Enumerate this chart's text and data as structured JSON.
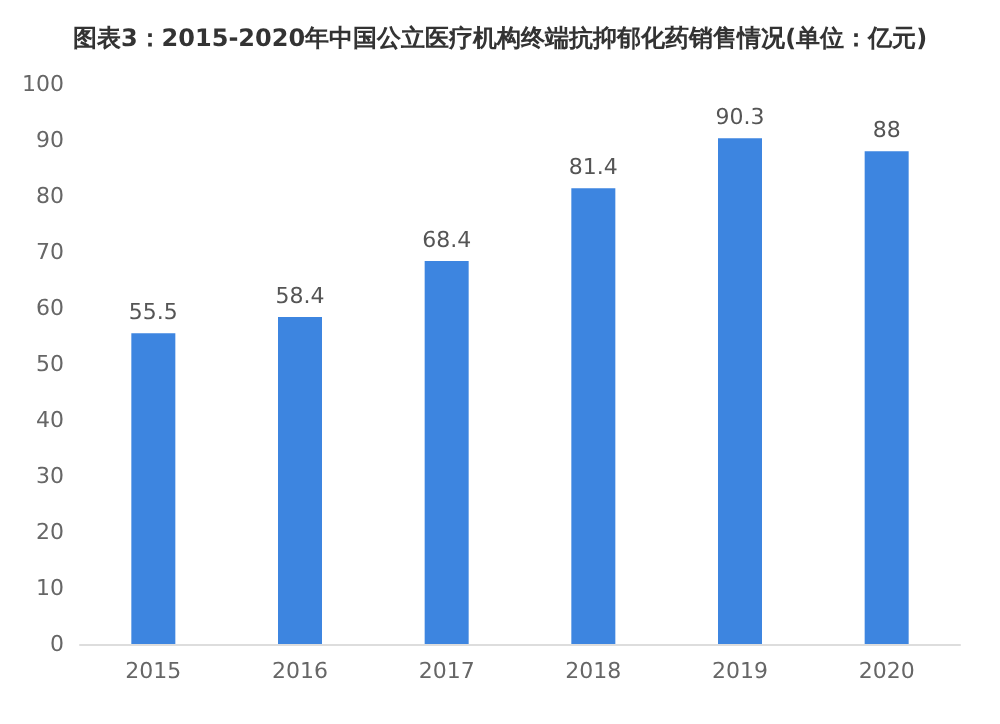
{
  "chart_data": {
    "type": "bar",
    "title": "图表3：2015-2020年中国公立医疗机构终端抗抑郁化药销售情况(单位：亿元)",
    "categories": [
      "2015",
      "2016",
      "2017",
      "2018",
      "2019",
      "2020"
    ],
    "values": [
      55.5,
      58.4,
      68.4,
      81.4,
      90.3,
      88
    ],
    "color": "#3d85e0",
    "ylim": [
      0,
      100
    ],
    "yticks": [
      0,
      10,
      20,
      30,
      40,
      50,
      60,
      70,
      80,
      90,
      100
    ],
    "data_labels": true,
    "grid": false
  }
}
